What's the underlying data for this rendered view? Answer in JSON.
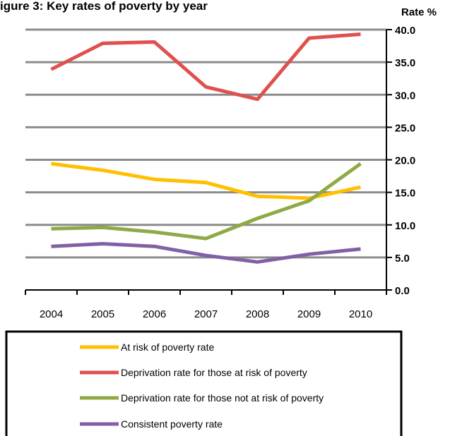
{
  "chart_data": {
    "type": "line",
    "title": "igure 3: Key rates of poverty by year",
    "ylabel": "Rate %",
    "x": [
      "2004",
      "2005",
      "2006",
      "2007",
      "2008",
      "2009",
      "2010"
    ],
    "ylim": [
      0,
      40
    ],
    "y_ticks": [
      "0.0",
      "5.0",
      "10.0",
      "15.0",
      "20.0",
      "25.0",
      "30.0",
      "35.0",
      "40.0"
    ],
    "y_axis_side": "right",
    "grid": true,
    "legend_position": "bottom",
    "series": [
      {
        "name": "At risk of poverty rate",
        "color": "#ffc000",
        "values": [
          19.4,
          18.4,
          17.0,
          16.5,
          14.4,
          14.1,
          15.8
        ]
      },
      {
        "name": "Deprivation rate for those at risk of poverty",
        "color": "#e0504e",
        "values": [
          33.9,
          37.9,
          38.1,
          31.2,
          29.3,
          38.7,
          39.3
        ]
      },
      {
        "name": "Deprivation rate for those not at risk of poverty",
        "color": "#8faa45",
        "values": [
          9.4,
          9.6,
          8.9,
          7.9,
          11.0,
          13.7,
          19.4
        ]
      },
      {
        "name": "Consistent poverty rate",
        "color": "#8062a4",
        "values": [
          6.7,
          7.1,
          6.7,
          5.3,
          4.3,
          5.5,
          6.3
        ]
      }
    ]
  }
}
